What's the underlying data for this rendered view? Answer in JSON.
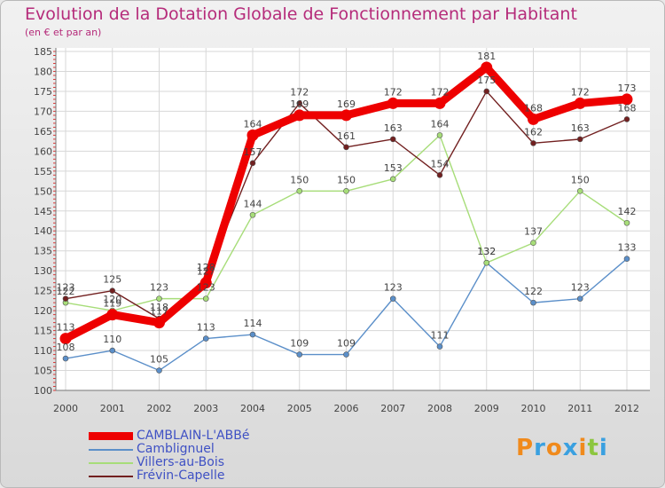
{
  "header": {
    "title": "Evolution de la Dotation Globale de Fonctionnement par Habitant",
    "subtitle": "(en € et par an)"
  },
  "brand": {
    "letters": [
      "P",
      "r",
      "o",
      "x",
      "i",
      "t",
      "i"
    ],
    "colors": [
      "#f08a1c",
      "#3aa0e0",
      "#f08a1c",
      "#3aa0e0",
      "#f08a1c",
      "#8cc63f",
      "#3aa0e0"
    ]
  },
  "chart_data": {
    "type": "line",
    "title": "Evolution de la Dotation Globale de Fonctionnement par Habitant",
    "subtitle": "(en € et par an)",
    "xlabel": "",
    "ylabel": "",
    "categories": [
      "2000",
      "2001",
      "2002",
      "2003",
      "2004",
      "2005",
      "2006",
      "2007",
      "2008",
      "2009",
      "2010",
      "2011",
      "2012"
    ],
    "ylim": [
      100,
      185
    ],
    "yticks": [
      100,
      105,
      110,
      115,
      120,
      125,
      130,
      135,
      140,
      145,
      150,
      155,
      160,
      165,
      170,
      175,
      180,
      185
    ],
    "grid": true,
    "legend_position": "bottom-left",
    "series": [
      {
        "name": "Camblignuel",
        "legend_label": "Camblignuel",
        "color": "#5b8fc9",
        "values": [
          108,
          110,
          105,
          113,
          114,
          109,
          109,
          123,
          111,
          132,
          122,
          123,
          133
        ]
      },
      {
        "name": "Villers-au-Bois",
        "legend_label": "Villers-au-Bois",
        "color": "#a7dd79",
        "values": [
          122,
          120,
          123,
          123,
          144,
          150,
          150,
          153,
          164,
          132,
          137,
          150,
          142
        ]
      },
      {
        "name": "Frévin-Capelle",
        "legend_label": "Frévin-Capelle",
        "color": "#722020",
        "values": [
          123,
          125,
          118,
          128,
          157,
          172,
          161,
          163,
          154,
          175,
          162,
          163,
          168
        ]
      },
      {
        "name": "CAMBLAIN-L'ABBé",
        "legend_label": "CAMBLAIN-L'ABBé",
        "color": "#ee0000",
        "values": [
          113,
          119,
          117,
          127,
          164,
          169,
          169,
          172,
          172,
          181,
          168,
          172,
          173
        ]
      }
    ]
  }
}
